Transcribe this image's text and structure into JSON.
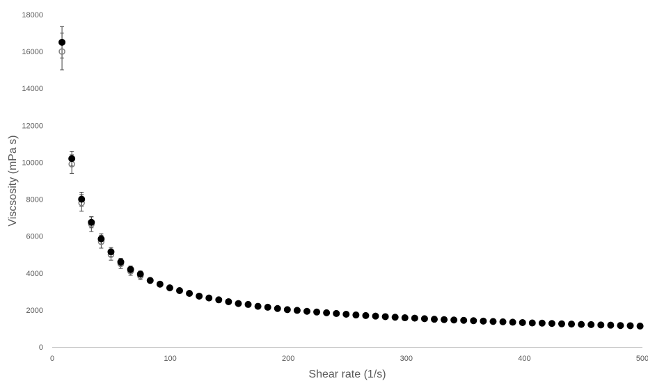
{
  "chart_data": {
    "type": "scatter",
    "title": "",
    "xlabel": "Shear rate (1/s)",
    "ylabel": "Viscsosity (mPa s)",
    "xlim": [
      0,
      500
    ],
    "ylim": [
      0,
      18000
    ],
    "x_ticks": [
      0,
      100,
      200,
      300,
      400,
      500
    ],
    "y_ticks": [
      0,
      2000,
      4000,
      6000,
      8000,
      10000,
      12000,
      14000,
      16000,
      18000
    ],
    "x_tick_labels": [
      "0",
      "100",
      "200",
      "300",
      "400",
      "500"
    ],
    "y_tick_labels": [
      "0",
      "2000",
      "4000",
      "6000",
      "8000",
      "10000",
      "12000",
      "14000",
      "16000",
      "18000"
    ],
    "grid": false,
    "legend": "none",
    "series": [
      {
        "marker": "open-circle",
        "color": "#808080",
        "x": [
          8.3,
          16.6,
          24.9,
          33.2,
          41.5,
          49.8,
          58.1,
          66.4,
          74.7
        ],
        "y": [
          16000,
          9900,
          7800,
          6650,
          5700,
          5000,
          4500,
          4100,
          3850
        ],
        "error": [
          1000,
          500,
          450,
          400,
          350,
          300,
          250,
          220,
          200
        ]
      },
      {
        "marker": "filled-circle",
        "color": "#000000",
        "x": [
          8.3,
          16.6,
          24.9,
          33.2,
          41.5,
          49.8,
          58.1,
          66.4,
          74.7,
          83,
          91.3,
          99.6,
          107.9,
          116.2,
          124.5,
          132.8,
          141.1,
          149.4,
          157.7,
          166,
          174.3,
          182.6,
          190.9,
          199.2,
          207.5,
          215.8,
          224.1,
          232.4,
          240.7,
          249,
          257.3,
          265.6,
          273.9,
          282.2,
          290.5,
          298.8,
          307.1,
          315.4,
          323.7,
          332,
          340.3,
          348.6,
          356.9,
          365.2,
          373.5,
          381.8,
          390.1,
          398.4,
          406.7,
          415,
          423.3,
          431.6,
          439.9,
          448.2,
          456.5,
          464.8,
          473.1,
          481.4,
          489.7,
          498
        ],
        "y": [
          16500,
          10200,
          8000,
          6750,
          5850,
          5150,
          4600,
          4200,
          3950,
          3600,
          3400,
          3200,
          3050,
          2900,
          2750,
          2650,
          2550,
          2450,
          2350,
          2300,
          2200,
          2150,
          2080,
          2020,
          1980,
          1930,
          1890,
          1850,
          1810,
          1770,
          1730,
          1700,
          1670,
          1640,
          1610,
          1580,
          1560,
          1530,
          1500,
          1480,
          1460,
          1440,
          1420,
          1400,
          1380,
          1360,
          1340,
          1320,
          1300,
          1290,
          1270,
          1250,
          1240,
          1220,
          1210,
          1190,
          1180,
          1160,
          1150,
          1130
        ],
        "error": [
          850,
          400,
          380,
          300,
          280,
          250,
          200,
          180,
          160,
          0,
          0,
          0,
          0,
          0,
          0,
          0,
          0,
          0,
          0,
          0,
          0,
          0,
          0,
          0,
          0,
          0,
          0,
          0,
          0,
          0,
          0,
          0,
          0,
          0,
          0,
          0,
          0,
          0,
          0,
          0,
          0,
          0,
          0,
          0,
          0,
          0,
          0,
          0,
          0,
          0,
          0,
          0,
          0,
          0,
          0,
          0,
          0,
          0,
          0,
          0
        ]
      }
    ]
  }
}
